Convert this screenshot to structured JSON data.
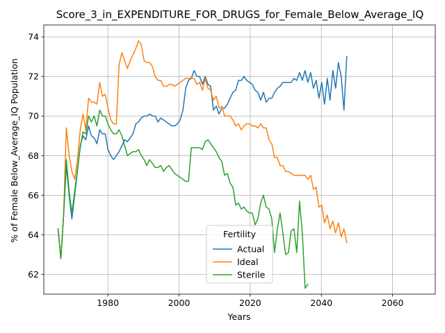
{
  "chart_data": {
    "type": "line",
    "title": "Score_3_in_EXPENDITURE_FOR_DRUGS_for_Female_Below_Average_IQ",
    "xlabel": "Years",
    "ylabel": "% of Female Below_Average_IQ Population",
    "xlim": [
      1962,
      2072
    ],
    "ylim": [
      61.0,
      74.6
    ],
    "xticks": [
      1980,
      2000,
      2020,
      2040,
      2060
    ],
    "yticks": [
      62,
      64,
      66,
      68,
      70,
      72,
      74
    ],
    "xtick_labels": [
      "1980",
      "2000",
      "2020",
      "2040",
      "2060"
    ],
    "ytick_labels": [
      "62",
      "64",
      "66",
      "68",
      "70",
      "72",
      "74"
    ],
    "grid": true,
    "legend": {
      "title": "Fertility",
      "placement": "lower-center"
    },
    "x_start": 1966,
    "x_step": 0.78,
    "series": [
      {
        "name": "Actual",
        "color": "#1f77b4",
        "values": [
          64.3,
          62.8,
          65.0,
          67.5,
          66.0,
          64.8,
          66.0,
          67.2,
          68.5,
          69.0,
          68.8,
          69.5,
          69.0,
          68.9,
          68.6,
          69.3,
          69.1,
          69.1,
          68.3,
          68.0,
          67.8,
          68.0,
          68.2,
          68.5,
          68.8,
          68.7,
          68.9,
          69.1,
          69.6,
          69.7,
          69.9,
          70.0,
          70.0,
          70.1,
          70.0,
          70.0,
          69.7,
          69.9,
          69.8,
          69.7,
          69.6,
          69.5,
          69.5,
          69.6,
          69.8,
          70.3,
          71.4,
          71.8,
          71.9,
          72.3,
          72.0,
          72.0,
          71.6,
          72.0,
          71.6,
          71.5,
          70.3,
          70.5,
          70.1,
          70.4,
          70.4,
          70.6,
          70.9,
          71.2,
          71.3,
          71.8,
          71.8,
          72.0,
          71.8,
          71.7,
          71.6,
          71.3,
          71.2,
          70.8,
          71.2,
          70.7,
          70.9,
          70.9,
          71.2,
          71.4,
          71.5,
          71.7,
          71.7,
          71.7,
          71.7,
          71.9,
          71.8,
          72.2,
          71.8,
          72.3,
          71.7,
          72.2,
          71.4,
          71.8,
          70.9,
          71.7,
          70.6,
          71.9,
          70.8,
          72.3,
          71.4,
          72.7,
          72.0,
          70.3,
          73.0
        ]
      },
      {
        "name": "Ideal",
        "color": "#ff7f0e",
        "values": [
          64.3,
          62.8,
          65.0,
          69.4,
          68.0,
          67.2,
          66.8,
          67.8,
          69.3,
          70.1,
          69.3,
          70.9,
          70.7,
          70.7,
          70.6,
          71.7,
          71.0,
          71.1,
          70.4,
          69.8,
          69.6,
          69.6,
          72.6,
          73.2,
          72.8,
          72.4,
          72.8,
          73.1,
          73.4,
          73.8,
          73.6,
          72.8,
          72.7,
          72.7,
          72.5,
          72.0,
          71.8,
          71.8,
          71.5,
          71.5,
          71.6,
          71.6,
          71.5,
          71.6,
          71.7,
          71.8,
          71.9,
          71.9,
          71.9,
          71.9,
          71.6,
          71.7,
          71.3,
          71.9,
          71.4,
          71.3,
          70.8,
          71.0,
          70.4,
          70.5,
          70.0,
          70.0,
          70.0,
          69.8,
          69.5,
          69.6,
          69.3,
          69.5,
          69.6,
          69.6,
          69.5,
          69.5,
          69.4,
          69.6,
          69.4,
          69.4,
          68.8,
          68.6,
          67.9,
          67.9,
          67.5,
          67.5,
          67.2,
          67.2,
          67.1,
          67.0,
          67.0,
          67.0,
          67.0,
          67.0,
          66.8,
          67.0,
          66.3,
          66.4,
          65.4,
          65.5,
          64.6,
          65.0,
          64.3,
          64.7,
          64.1,
          64.6,
          63.9,
          64.3,
          63.6
        ]
      },
      {
        "name": "Sterile",
        "color": "#2ca02c",
        "values": [
          64.3,
          62.8,
          65.0,
          67.8,
          66.2,
          65.1,
          66.2,
          67.3,
          68.4,
          69.2,
          69.1,
          70.0,
          69.7,
          70.0,
          69.5,
          70.3,
          70.0,
          70.0,
          69.6,
          69.3,
          69.1,
          69.1,
          69.3,
          69.0,
          68.5,
          68.0,
          68.1,
          68.2,
          68.2,
          68.3,
          68.0,
          67.8,
          67.5,
          67.8,
          67.6,
          67.4,
          67.4,
          67.5,
          67.2,
          67.4,
          67.5,
          67.3,
          67.1,
          67.0,
          66.9,
          66.8,
          66.7,
          66.7,
          68.4,
          68.4,
          68.4,
          68.4,
          68.3,
          68.7,
          68.8,
          68.6,
          68.4,
          68.2,
          67.9,
          67.7,
          67.0,
          67.1,
          66.6,
          66.4,
          65.5,
          65.6,
          65.3,
          65.4,
          65.2,
          65.1,
          65.1,
          64.5,
          64.8,
          65.6,
          66.0,
          65.4,
          65.3,
          64.8,
          63.1,
          64.3,
          65.1,
          64.1,
          63.0,
          63.1,
          64.2,
          64.3,
          63.1,
          65.7,
          64.1,
          61.3,
          61.5
        ]
      }
    ]
  }
}
